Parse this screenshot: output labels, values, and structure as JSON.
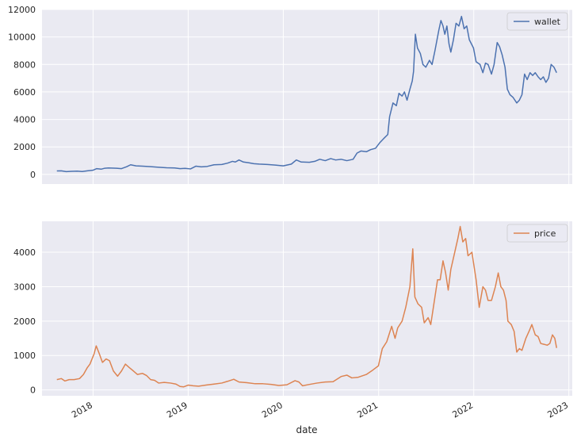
{
  "chart_data": [
    {
      "type": "line",
      "title": "",
      "xlabel": "",
      "ylabel": "",
      "ylim": [
        -700,
        12000
      ],
      "yticks": [
        0,
        2000,
        4000,
        6000,
        8000,
        10000,
        12000
      ],
      "grid": true,
      "legend": "top-right",
      "series": [
        {
          "name": "wallet",
          "color": "#4c72b0",
          "points": [
            [
              "2017-08-15",
              250
            ],
            [
              "2017-09-01",
              260
            ],
            [
              "2017-09-20",
              200
            ],
            [
              "2017-10-10",
              220
            ],
            [
              "2017-11-01",
              240
            ],
            [
              "2017-11-20",
              210
            ],
            [
              "2017-12-10",
              260
            ],
            [
              "2017-12-31",
              300
            ],
            [
              "2018-01-15",
              420
            ],
            [
              "2018-02-01",
              380
            ],
            [
              "2018-02-15",
              450
            ],
            [
              "2018-03-01",
              470
            ],
            [
              "2018-04-01",
              450
            ],
            [
              "2018-04-20",
              420
            ],
            [
              "2018-05-10",
              560
            ],
            [
              "2018-05-25",
              700
            ],
            [
              "2018-06-15",
              620
            ],
            [
              "2018-07-10",
              600
            ],
            [
              "2018-08-10",
              560
            ],
            [
              "2018-09-10",
              520
            ],
            [
              "2018-10-10",
              480
            ],
            [
              "2018-11-10",
              470
            ],
            [
              "2018-12-01",
              420
            ],
            [
              "2018-12-20",
              440
            ],
            [
              "2019-01-10",
              400
            ],
            [
              "2019-01-31",
              600
            ],
            [
              "2019-02-20",
              550
            ],
            [
              "2019-03-15",
              580
            ],
            [
              "2019-04-10",
              700
            ],
            [
              "2019-05-10",
              720
            ],
            [
              "2019-06-01",
              820
            ],
            [
              "2019-06-20",
              950
            ],
            [
              "2019-07-01",
              900
            ],
            [
              "2019-07-15",
              1050
            ],
            [
              "2019-08-01",
              900
            ],
            [
              "2019-08-20",
              850
            ],
            [
              "2019-09-10",
              780
            ],
            [
              "2019-10-01",
              750
            ],
            [
              "2019-11-01",
              720
            ],
            [
              "2019-12-01",
              680
            ],
            [
              "2020-01-01",
              620
            ],
            [
              "2020-02-01",
              750
            ],
            [
              "2020-02-20",
              1050
            ],
            [
              "2020-03-10",
              900
            ],
            [
              "2020-04-10",
              880
            ],
            [
              "2020-05-01",
              950
            ],
            [
              "2020-05-20",
              1100
            ],
            [
              "2020-06-10",
              1000
            ],
            [
              "2020-07-01",
              1150
            ],
            [
              "2020-07-20",
              1050
            ],
            [
              "2020-08-10",
              1100
            ],
            [
              "2020-09-01",
              1000
            ],
            [
              "2020-09-25",
              1100
            ],
            [
              "2020-10-10",
              1550
            ],
            [
              "2020-10-25",
              1700
            ],
            [
              "2020-11-15",
              1650
            ],
            [
              "2020-12-01",
              1800
            ],
            [
              "2020-12-20",
              1900
            ],
            [
              "2021-01-05",
              2300
            ],
            [
              "2021-01-20",
              2600
            ],
            [
              "2021-02-05",
              2900
            ],
            [
              "2021-02-12",
              4200
            ],
            [
              "2021-02-25",
              5200
            ],
            [
              "2021-03-10",
              5000
            ],
            [
              "2021-03-20",
              5900
            ],
            [
              "2021-04-01",
              5700
            ],
            [
              "2021-04-10",
              6000
            ],
            [
              "2021-04-20",
              5400
            ],
            [
              "2021-05-01",
              6200
            ],
            [
              "2021-05-10",
              6800
            ],
            [
              "2021-05-15",
              7500
            ],
            [
              "2021-05-22",
              10200
            ],
            [
              "2021-05-30",
              9200
            ],
            [
              "2021-06-10",
              8800
            ],
            [
              "2021-06-20",
              8000
            ],
            [
              "2021-07-01",
              7800
            ],
            [
              "2021-07-15",
              8300
            ],
            [
              "2021-07-25",
              8000
            ],
            [
              "2021-08-05",
              9000
            ],
            [
              "2021-08-20",
              10500
            ],
            [
              "2021-08-28",
              11200
            ],
            [
              "2021-09-05",
              10800
            ],
            [
              "2021-09-12",
              10200
            ],
            [
              "2021-09-20",
              10800
            ],
            [
              "2021-09-28",
              9500
            ],
            [
              "2021-10-05",
              8900
            ],
            [
              "2021-10-15",
              9800
            ],
            [
              "2021-10-25",
              11000
            ],
            [
              "2021-11-05",
              10800
            ],
            [
              "2021-11-15",
              11500
            ],
            [
              "2021-11-25",
              10600
            ],
            [
              "2021-12-05",
              10800
            ],
            [
              "2021-12-15",
              9800
            ],
            [
              "2021-12-31",
              9200
            ],
            [
              "2022-01-10",
              8200
            ],
            [
              "2022-01-25",
              8000
            ],
            [
              "2022-02-05",
              7400
            ],
            [
              "2022-02-15",
              8100
            ],
            [
              "2022-02-25",
              8000
            ],
            [
              "2022-03-10",
              7300
            ],
            [
              "2022-03-20",
              8000
            ],
            [
              "2022-04-01",
              9600
            ],
            [
              "2022-04-10",
              9300
            ],
            [
              "2022-04-20",
              8700
            ],
            [
              "2022-05-01",
              7800
            ],
            [
              "2022-05-10",
              6200
            ],
            [
              "2022-05-20",
              5800
            ],
            [
              "2022-06-01",
              5600
            ],
            [
              "2022-06-15",
              5200
            ],
            [
              "2022-06-25",
              5400
            ],
            [
              "2022-07-05",
              5800
            ],
            [
              "2022-07-15",
              7300
            ],
            [
              "2022-07-25",
              6900
            ],
            [
              "2022-08-05",
              7400
            ],
            [
              "2022-08-15",
              7200
            ],
            [
              "2022-08-25",
              7400
            ],
            [
              "2022-09-05",
              7100
            ],
            [
              "2022-09-15",
              6900
            ],
            [
              "2022-09-25",
              7100
            ],
            [
              "2022-10-05",
              6700
            ],
            [
              "2022-10-15",
              7000
            ],
            [
              "2022-10-25",
              8000
            ],
            [
              "2022-11-05",
              7800
            ],
            [
              "2022-11-15",
              7400
            ]
          ]
        }
      ]
    },
    {
      "type": "line",
      "title": "",
      "xlabel": "date",
      "ylabel": "",
      "ylim": [
        -170,
        4900
      ],
      "yticks": [
        0,
        1000,
        2000,
        3000,
        4000
      ],
      "grid": true,
      "legend": "top-right",
      "series": [
        {
          "name": "price",
          "color": "#dd8452",
          "points": [
            [
              "2017-08-15",
              300
            ],
            [
              "2017-09-01",
              330
            ],
            [
              "2017-09-15",
              260
            ],
            [
              "2017-10-01",
              300
            ],
            [
              "2017-10-20",
              300
            ],
            [
              "2017-11-10",
              330
            ],
            [
              "2017-11-25",
              450
            ],
            [
              "2017-12-10",
              650
            ],
            [
              "2017-12-20",
              750
            ],
            [
              "2018-01-05",
              1050
            ],
            [
              "2018-01-13",
              1280
            ],
            [
              "2018-01-25",
              1050
            ],
            [
              "2018-02-06",
              800
            ],
            [
              "2018-02-20",
              900
            ],
            [
              "2018-03-05",
              850
            ],
            [
              "2018-03-20",
              550
            ],
            [
              "2018-04-05",
              400
            ],
            [
              "2018-04-20",
              550
            ],
            [
              "2018-05-05",
              750
            ],
            [
              "2018-05-20",
              650
            ],
            [
              "2018-06-05",
              550
            ],
            [
              "2018-06-20",
              450
            ],
            [
              "2018-07-10",
              480
            ],
            [
              "2018-07-25",
              420
            ],
            [
              "2018-08-10",
              300
            ],
            [
              "2018-08-25",
              280
            ],
            [
              "2018-09-10",
              200
            ],
            [
              "2018-10-01",
              220
            ],
            [
              "2018-10-25",
              200
            ],
            [
              "2018-11-15",
              170
            ],
            [
              "2018-12-01",
              100
            ],
            [
              "2018-12-15",
              90
            ],
            [
              "2019-01-01",
              140
            ],
            [
              "2019-01-20",
              120
            ],
            [
              "2019-02-10",
              110
            ],
            [
              "2019-03-10",
              140
            ],
            [
              "2019-04-10",
              170
            ],
            [
              "2019-05-10",
              200
            ],
            [
              "2019-06-01",
              250
            ],
            [
              "2019-06-25",
              310
            ],
            [
              "2019-07-15",
              230
            ],
            [
              "2019-08-15",
              210
            ],
            [
              "2019-09-15",
              180
            ],
            [
              "2019-10-15",
              180
            ],
            [
              "2019-11-15",
              160
            ],
            [
              "2019-12-15",
              130
            ],
            [
              "2020-01-15",
              150
            ],
            [
              "2020-02-15",
              270
            ],
            [
              "2020-03-01",
              230
            ],
            [
              "2020-03-15",
              120
            ],
            [
              "2020-04-10",
              160
            ],
            [
              "2020-05-10",
              200
            ],
            [
              "2020-06-10",
              230
            ],
            [
              "2020-07-10",
              240
            ],
            [
              "2020-08-10",
              390
            ],
            [
              "2020-09-01",
              430
            ],
            [
              "2020-09-20",
              350
            ],
            [
              "2020-10-15",
              370
            ],
            [
              "2020-11-15",
              450
            ],
            [
              "2020-12-10",
              580
            ],
            [
              "2020-12-31",
              700
            ],
            [
              "2021-01-15",
              1200
            ],
            [
              "2021-02-01",
              1400
            ],
            [
              "2021-02-20",
              1850
            ],
            [
              "2021-03-05",
              1500
            ],
            [
              "2021-03-15",
              1800
            ],
            [
              "2021-04-01",
              2000
            ],
            [
              "2021-04-15",
              2400
            ],
            [
              "2021-05-01",
              3000
            ],
            [
              "2021-05-12",
              4100
            ],
            [
              "2021-05-20",
              2700
            ],
            [
              "2021-06-01",
              2500
            ],
            [
              "2021-06-15",
              2400
            ],
            [
              "2021-06-25",
              1950
            ],
            [
              "2021-07-10",
              2100
            ],
            [
              "2021-07-20",
              1900
            ],
            [
              "2021-08-01",
              2500
            ],
            [
              "2021-08-15",
              3200
            ],
            [
              "2021-08-25",
              3200
            ],
            [
              "2021-09-05",
              3750
            ],
            [
              "2021-09-15",
              3400
            ],
            [
              "2021-09-25",
              2900
            ],
            [
              "2021-10-05",
              3500
            ],
            [
              "2021-10-20",
              4000
            ],
            [
              "2021-11-01",
              4400
            ],
            [
              "2021-11-10",
              4750
            ],
            [
              "2021-11-20",
              4300
            ],
            [
              "2021-12-01",
              4400
            ],
            [
              "2021-12-10",
              3900
            ],
            [
              "2021-12-25",
              4000
            ],
            [
              "2022-01-10",
              3200
            ],
            [
              "2022-01-22",
              2400
            ],
            [
              "2022-02-05",
              3000
            ],
            [
              "2022-02-15",
              2900
            ],
            [
              "2022-02-25",
              2600
            ],
            [
              "2022-03-10",
              2600
            ],
            [
              "2022-03-25",
              3000
            ],
            [
              "2022-04-05",
              3400
            ],
            [
              "2022-04-15",
              3000
            ],
            [
              "2022-04-25",
              2900
            ],
            [
              "2022-05-05",
              2600
            ],
            [
              "2022-05-12",
              2000
            ],
            [
              "2022-05-25",
              1900
            ],
            [
              "2022-06-05",
              1700
            ],
            [
              "2022-06-15",
              1100
            ],
            [
              "2022-06-25",
              1200
            ],
            [
              "2022-07-05",
              1150
            ],
            [
              "2022-07-20",
              1500
            ],
            [
              "2022-08-01",
              1700
            ],
            [
              "2022-08-12",
              1900
            ],
            [
              "2022-08-25",
              1600
            ],
            [
              "2022-09-05",
              1550
            ],
            [
              "2022-09-15",
              1350
            ],
            [
              "2022-09-25",
              1330
            ],
            [
              "2022-10-10",
              1300
            ],
            [
              "2022-10-20",
              1350
            ],
            [
              "2022-10-30",
              1600
            ],
            [
              "2022-11-08",
              1500
            ],
            [
              "2022-11-15",
              1220
            ]
          ]
        }
      ]
    }
  ],
  "xaxis": {
    "range": [
      "2017-06-19",
      "2023-01-14"
    ],
    "ticks": [
      {
        "date": "2018-01-01",
        "label": "2018"
      },
      {
        "date": "2019-01-01",
        "label": "2019"
      },
      {
        "date": "2020-01-01",
        "label": "2020"
      },
      {
        "date": "2021-01-01",
        "label": "2021"
      },
      {
        "date": "2022-01-01",
        "label": "2022"
      },
      {
        "date": "2023-01-01",
        "label": "2023"
      }
    ],
    "label": "date"
  },
  "style": {
    "axes_background": "#eaeaf2",
    "grid_color": "#ffffff",
    "text_color": "#262626"
  }
}
